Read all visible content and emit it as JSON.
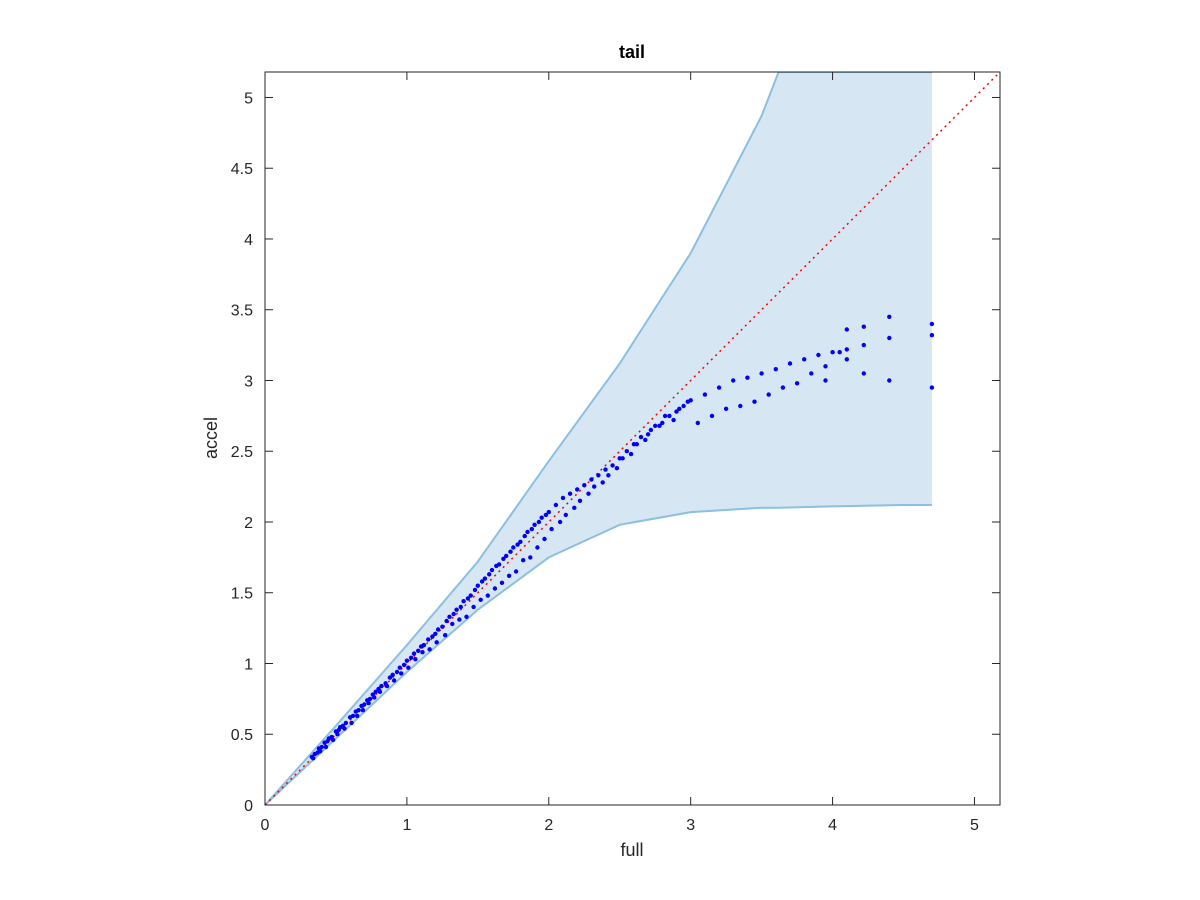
{
  "chart_data": {
    "type": "scatter",
    "title": "tail",
    "xlabel": "full",
    "ylabel": "accel",
    "xlim": [
      0,
      5.18
    ],
    "ylim": [
      0,
      5.18
    ],
    "xticks": [
      0,
      1,
      2,
      3,
      4,
      5
    ],
    "yticks": [
      0,
      0.5,
      1,
      1.5,
      2,
      2.5,
      3,
      3.5,
      4,
      4.5,
      5
    ],
    "xtick_labels": [
      "0",
      "1",
      "2",
      "3",
      "4",
      "5"
    ],
    "ytick_labels": [
      "0",
      "0.5",
      "1",
      "1.5",
      "2",
      "2.5",
      "3",
      "3.5",
      "4",
      "4.5",
      "5"
    ],
    "grid": false,
    "colors": {
      "points": "#0000ff",
      "band_fill": "#d6e7f3",
      "band_edge": "#8cbfe0",
      "reference_line": "#ff0000",
      "axes": "#262626"
    },
    "reference_line": {
      "x": [
        0,
        5.18
      ],
      "y": [
        0,
        5.18
      ],
      "style": "dotted"
    },
    "band": {
      "x": [
        0,
        0.5,
        1.0,
        1.5,
        2.0,
        2.5,
        3.0,
        3.5,
        3.62,
        4.0,
        4.5,
        4.7
      ],
      "upper": [
        0,
        0.56,
        1.13,
        1.72,
        2.43,
        3.12,
        3.9,
        4.87,
        5.18,
        5.18,
        5.18,
        5.18
      ],
      "lower": [
        0,
        0.47,
        0.94,
        1.38,
        1.75,
        1.98,
        2.07,
        2.1,
        2.1,
        2.11,
        2.12,
        2.12
      ]
    },
    "series": [
      {
        "x": [
          0.33,
          0.35,
          0.37,
          0.38,
          0.4,
          0.42,
          0.44,
          0.45,
          0.47,
          0.5,
          0.52,
          0.53,
          0.55,
          0.57,
          0.6,
          0.62,
          0.64,
          0.66,
          0.68,
          0.7,
          0.72,
          0.74,
          0.76,
          0.78,
          0.8,
          0.82,
          0.85,
          0.88,
          0.9,
          0.93,
          0.95,
          0.98,
          1.0,
          1.03,
          1.05,
          1.08,
          1.1,
          1.12,
          1.15,
          1.18,
          1.2,
          1.22,
          1.25,
          1.28,
          1.3,
          1.33,
          1.35,
          1.38,
          1.4,
          1.43,
          1.45,
          1.48,
          1.5,
          1.53,
          1.55,
          1.58,
          1.6,
          1.63,
          1.65,
          1.68,
          1.7,
          1.73,
          1.75,
          1.78,
          1.8,
          1.83,
          1.85,
          1.88,
          1.9,
          1.93,
          1.95,
          1.98,
          2.0,
          2.05,
          2.1,
          2.15,
          2.2,
          2.25,
          2.3,
          2.35,
          2.4,
          2.45,
          2.5,
          2.55,
          2.6,
          2.65,
          2.7,
          2.75,
          2.8,
          2.85,
          2.9,
          2.95,
          3.0,
          3.1,
          3.2,
          3.3,
          3.4,
          3.5,
          3.6,
          3.7,
          3.8,
          3.9,
          4.0,
          4.1,
          4.22,
          4.4,
          4.7,
          0.34,
          0.39,
          0.43,
          0.48,
          0.51,
          0.56,
          0.61,
          0.65,
          0.69,
          0.73,
          0.77,
          0.81,
          0.86,
          0.91,
          0.96,
          1.01,
          1.06,
          1.11,
          1.16,
          1.21,
          1.27,
          1.32,
          1.37,
          1.42,
          1.47,
          1.52,
          1.57,
          1.62,
          1.67,
          1.72,
          1.77,
          1.82,
          1.87,
          1.92,
          1.97,
          2.02,
          2.08,
          2.12,
          2.18,
          2.22,
          2.28,
          2.32,
          2.38,
          2.42,
          2.48,
          2.52,
          2.58,
          2.62,
          2.68,
          2.72,
          2.78,
          2.82,
          2.88,
          2.92,
          2.98,
          3.05,
          3.15,
          3.25,
          3.35,
          3.45,
          3.55,
          3.65,
          3.75,
          3.85,
          3.95,
          4.05,
          4.1,
          4.22,
          4.4,
          4.7,
          4.7,
          4.4,
          4.22,
          4.1,
          3.95
        ],
        "y": [
          0.34,
          0.36,
          0.37,
          0.4,
          0.41,
          0.44,
          0.45,
          0.47,
          0.48,
          0.52,
          0.53,
          0.55,
          0.56,
          0.58,
          0.62,
          0.63,
          0.66,
          0.67,
          0.7,
          0.71,
          0.74,
          0.75,
          0.78,
          0.8,
          0.82,
          0.84,
          0.86,
          0.9,
          0.92,
          0.94,
          0.97,
          0.99,
          1.02,
          1.04,
          1.07,
          1.09,
          1.12,
          1.13,
          1.17,
          1.19,
          1.21,
          1.24,
          1.26,
          1.3,
          1.33,
          1.35,
          1.38,
          1.4,
          1.44,
          1.46,
          1.48,
          1.52,
          1.55,
          1.58,
          1.6,
          1.63,
          1.66,
          1.69,
          1.7,
          1.74,
          1.76,
          1.79,
          1.82,
          1.84,
          1.86,
          1.9,
          1.93,
          1.95,
          1.98,
          2.0,
          2.03,
          2.05,
          2.07,
          2.12,
          2.17,
          2.2,
          2.23,
          2.26,
          2.3,
          2.33,
          2.37,
          2.4,
          2.45,
          2.5,
          2.55,
          2.6,
          2.62,
          2.68,
          2.7,
          2.75,
          2.78,
          2.82,
          2.86,
          2.9,
          2.95,
          3.0,
          3.02,
          3.05,
          3.08,
          3.12,
          3.15,
          3.18,
          3.2,
          3.22,
          3.25,
          3.3,
          3.32,
          0.33,
          0.38,
          0.41,
          0.46,
          0.5,
          0.54,
          0.58,
          0.63,
          0.67,
          0.72,
          0.76,
          0.8,
          0.84,
          0.88,
          0.93,
          0.97,
          1.03,
          1.08,
          1.1,
          1.15,
          1.2,
          1.28,
          1.31,
          1.33,
          1.4,
          1.45,
          1.48,
          1.53,
          1.57,
          1.62,
          1.65,
          1.73,
          1.75,
          1.82,
          1.88,
          1.95,
          2.0,
          2.05,
          2.1,
          2.15,
          2.2,
          2.25,
          2.28,
          2.33,
          2.38,
          2.45,
          2.48,
          2.55,
          2.58,
          2.65,
          2.68,
          2.75,
          2.72,
          2.8,
          2.85,
          2.7,
          2.75,
          2.8,
          2.82,
          2.85,
          2.9,
          2.95,
          2.98,
          3.05,
          3.1,
          3.2,
          3.15,
          3.05,
          3.0,
          2.95,
          3.4,
          3.45,
          3.38,
          3.36,
          3.0
        ]
      }
    ]
  }
}
